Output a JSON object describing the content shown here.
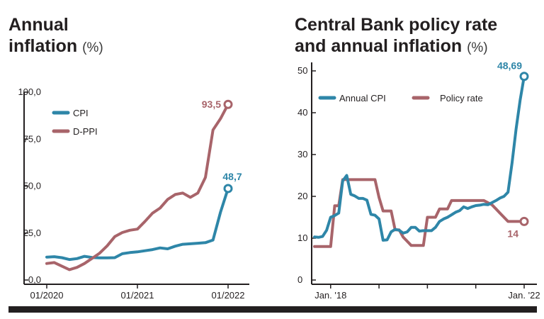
{
  "charts": {
    "left": {
      "title": "Annual inflation",
      "title_line1": "Annual",
      "title_line2": "inflation",
      "unit": "(%)"
    },
    "right": {
      "title": "Central Bank policy rate and annual inflation",
      "title_line1": "Central Bank policy rate",
      "title_line2": "and annual inflation",
      "unit": "(%)"
    }
  },
  "colors": {
    "cpi": "#2e86a8",
    "ppi": "#a8646a",
    "axis": "#231f20",
    "grid": "#cfcfcf"
  },
  "chart_data": [
    {
      "type": "line",
      "title": "Annual inflation (%)",
      "xlabel": "",
      "ylabel": "",
      "ylim": [
        0,
        100
      ],
      "yticks": [
        "0,0",
        "25,0",
        "50,0",
        "75,0",
        "100,0"
      ],
      "ytick_values": [
        0,
        25,
        50,
        75,
        100
      ],
      "xticks": [
        "01/2020",
        "01/2021",
        "01/2022"
      ],
      "xtick_values": [
        0,
        12,
        24
      ],
      "grid": false,
      "legend": "top-left",
      "series": [
        {
          "name": "CPI",
          "color": "#2e86a8",
          "end_label": "48,7",
          "x": [
            0,
            1,
            2,
            3,
            4,
            5,
            6,
            7,
            8,
            9,
            10,
            11,
            12,
            13,
            14,
            15,
            16,
            17,
            18,
            19,
            20,
            21,
            22,
            23,
            24
          ],
          "values": [
            12.2,
            12.4,
            11.9,
            10.9,
            11.4,
            12.6,
            12.0,
            11.8,
            11.8,
            11.9,
            14.0,
            14.6,
            15.0,
            15.6,
            16.2,
            17.1,
            16.6,
            18.0,
            19.0,
            19.3,
            19.6,
            19.9,
            21.3,
            36.1,
            48.7
          ]
        },
        {
          "name": "D-PPI",
          "color": "#a8646a",
          "end_label": "93,5",
          "x": [
            0,
            1,
            2,
            3,
            4,
            5,
            6,
            7,
            8,
            9,
            10,
            11,
            12,
            13,
            14,
            15,
            16,
            17,
            18,
            19,
            20,
            21,
            22,
            23,
            24
          ],
          "values": [
            8.8,
            9.3,
            7.4,
            5.5,
            6.7,
            8.8,
            11.5,
            14.3,
            18.2,
            23.1,
            25.3,
            26.5,
            27.1,
            31.2,
            35.6,
            38.3,
            42.9,
            45.5,
            46.3,
            44.0,
            46.3,
            54.6,
            79.9,
            85.9,
            93.5
          ]
        }
      ]
    },
    {
      "type": "line",
      "title": "Central Bank policy rate and annual inflation (%)",
      "xlabel": "",
      "ylabel": "",
      "ylim": [
        0,
        50
      ],
      "yticks": [
        "0",
        "10",
        "20",
        "30",
        "40",
        "50"
      ],
      "ytick_values": [
        0,
        10,
        20,
        30,
        40,
        50
      ],
      "xticks": [
        "Jan. '18",
        "Jan. '22"
      ],
      "xtick_values": [
        0,
        48
      ],
      "grid": false,
      "legend": "top",
      "series": [
        {
          "name": "Annual CPI",
          "color": "#2e86a8",
          "end_label": "48,69",
          "x": [
            -4,
            -3,
            -2,
            -1,
            0,
            1,
            2,
            3,
            4,
            5,
            6,
            7,
            8,
            9,
            10,
            11,
            12,
            13,
            14,
            15,
            16,
            17,
            18,
            19,
            20,
            21,
            22,
            23,
            24,
            25,
            26,
            27,
            28,
            29,
            30,
            31,
            32,
            33,
            34,
            35,
            36,
            37,
            38,
            39,
            40,
            41,
            42,
            43,
            44,
            45,
            46,
            47,
            48
          ],
          "values": [
            10.3,
            10.2,
            10.4,
            11.9,
            15.0,
            15.4,
            16.0,
            23.7,
            25.0,
            20.5,
            20.1,
            19.5,
            19.5,
            19.1,
            15.7,
            15.5,
            14.6,
            9.5,
            9.6,
            11.5,
            12.1,
            11.9,
            11.2,
            11.5,
            12.6,
            12.6,
            11.7,
            11.8,
            11.8,
            11.8,
            12.6,
            14.0,
            14.6,
            15.0,
            15.6,
            16.2,
            16.6,
            17.5,
            17.1,
            17.5,
            17.8,
            17.9,
            18.1,
            18.0,
            18.5,
            19.0,
            19.6,
            20.0,
            21.0,
            28.0,
            36.1,
            43.0,
            48.69
          ]
        },
        {
          "name": "Policy rate",
          "color": "#a8646a",
          "end_label": "14",
          "x": [
            -4,
            -3,
            -2,
            -1,
            0,
            1,
            2,
            3,
            4,
            5,
            6,
            7,
            8,
            9,
            10,
            11,
            12,
            13,
            14,
            15,
            16,
            17,
            18,
            19,
            20,
            21,
            22,
            23,
            24,
            25,
            26,
            27,
            28,
            29,
            30,
            31,
            32,
            33,
            34,
            35,
            36,
            37,
            38,
            39,
            40,
            41,
            42,
            43,
            44,
            45,
            46,
            47,
            48
          ],
          "values": [
            8,
            8,
            8,
            8,
            8,
            17.75,
            17.75,
            24,
            24,
            24,
            24,
            24,
            24,
            24,
            24,
            24,
            19.75,
            16.5,
            16.5,
            16.5,
            12,
            12,
            10.25,
            9.25,
            8.25,
            8.25,
            8.25,
            8.25,
            15,
            15,
            15,
            17,
            17,
            17,
            19,
            19,
            19,
            19,
            19,
            19,
            19,
            19,
            19,
            18.5,
            18,
            17,
            16,
            15,
            14,
            14,
            14,
            14,
            14
          ]
        }
      ]
    }
  ]
}
